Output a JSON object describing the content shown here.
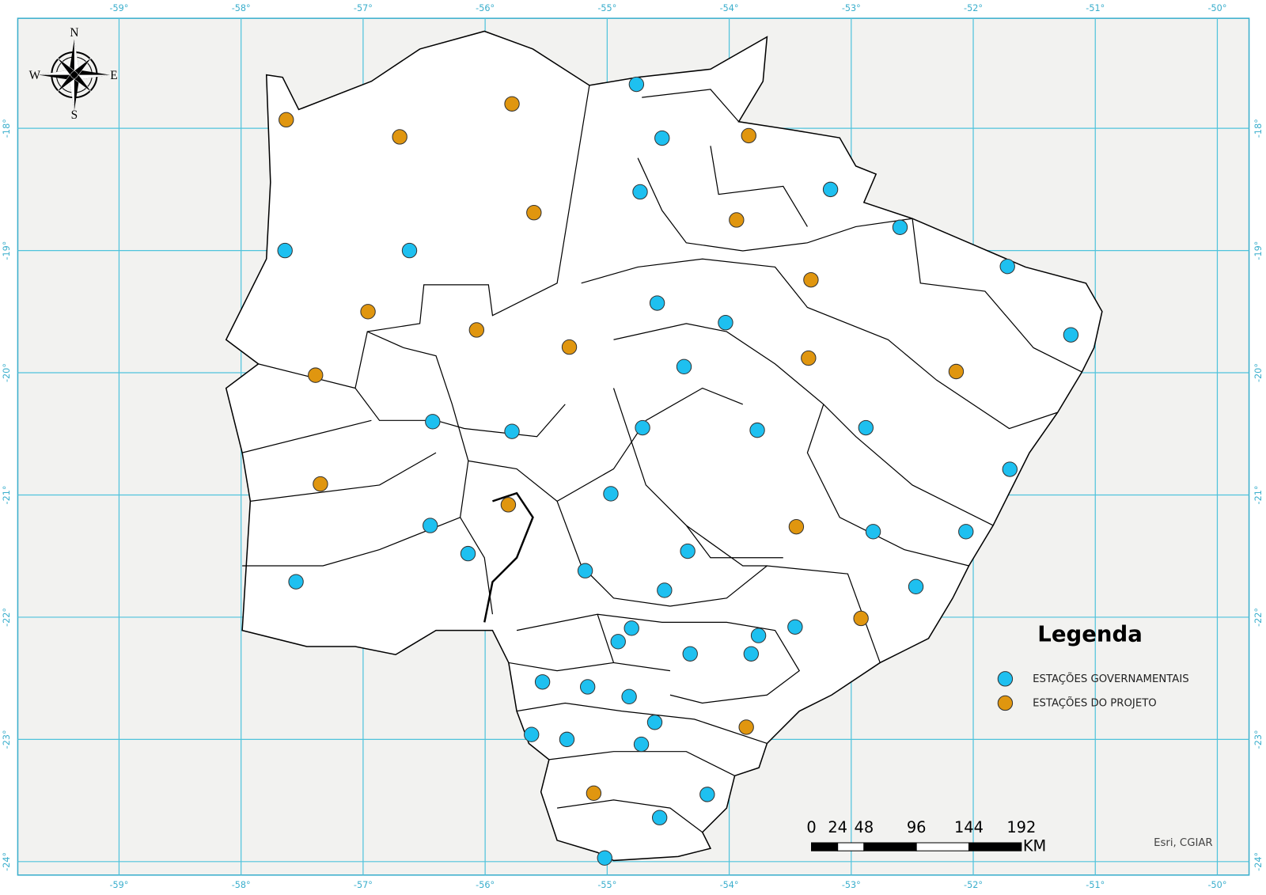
{
  "chart_data": {
    "type": "scatter",
    "legend_title": "Legenda",
    "xlim": [
      -59.83,
      -49.74
    ],
    "ylim": [
      -24.11,
      -17.1
    ],
    "xticks": [
      {
        "value": -59,
        "label": "-59°"
      },
      {
        "value": -58,
        "label": "-58°"
      },
      {
        "value": -57,
        "label": "-57°"
      },
      {
        "value": -56,
        "label": "-56°"
      },
      {
        "value": -55,
        "label": "-55°"
      },
      {
        "value": -54,
        "label": "-54°"
      },
      {
        "value": -53,
        "label": "-53°"
      },
      {
        "value": -52,
        "label": "-52°"
      },
      {
        "value": -51,
        "label": "-51°"
      },
      {
        "value": -50,
        "label": "-50°"
      }
    ],
    "yticks": [
      {
        "value": -18,
        "label": "-18°"
      },
      {
        "value": -19,
        "label": "-19°"
      },
      {
        "value": -20,
        "label": "-20°"
      },
      {
        "value": -21,
        "label": "-21°"
      },
      {
        "value": -22,
        "label": "-22°"
      },
      {
        "value": -23,
        "label": "-23°"
      },
      {
        "value": -24,
        "label": "-24°"
      }
    ],
    "grid": true,
    "series": [
      {
        "name": "ESTAÇÕES GOVERNAMENTAIS",
        "color": "#1ec0f0",
        "x": [
          -54.76,
          -54.55,
          -54.73,
          -53.17,
          -52.6,
          -51.72,
          -57.64,
          -56.62,
          -54.59,
          -54.03,
          -51.2,
          -54.37,
          -56.43,
          -55.78,
          -54.71,
          -53.77,
          -52.88,
          -51.7,
          -54.97,
          -56.45,
          -52.82,
          -52.06,
          -54.34,
          -56.14,
          -57.55,
          -55.18,
          -54.53,
          -52.47,
          -54.8,
          -54.91,
          -53.76,
          -53.46,
          -54.32,
          -53.82,
          -55.53,
          -55.16,
          -54.82,
          -54.61,
          -55.62,
          -55.33,
          -54.72,
          -54.18,
          -54.57,
          -55.02
        ],
        "y": [
          -17.64,
          -18.08,
          -18.52,
          -18.5,
          -18.81,
          -19.13,
          -19.0,
          -19.0,
          -19.43,
          -19.59,
          -19.69,
          -19.95,
          -20.4,
          -20.48,
          -20.45,
          -20.47,
          -20.45,
          -20.79,
          -20.99,
          -21.25,
          -21.3,
          -21.3,
          -21.46,
          -21.48,
          -21.71,
          -21.62,
          -21.78,
          -21.75,
          -22.09,
          -22.2,
          -22.15,
          -22.08,
          -22.3,
          -22.3,
          -22.53,
          -22.57,
          -22.65,
          -22.86,
          -22.96,
          -23.0,
          -23.04,
          -23.45,
          -23.64,
          -23.97
        ]
      },
      {
        "name": "ESTAÇÕES DO PROJETO",
        "color": "#e0960f",
        "x": [
          -57.63,
          -55.78,
          -56.7,
          -53.84,
          -55.6,
          -53.94,
          -53.33,
          -56.96,
          -56.07,
          -55.31,
          -53.35,
          -57.39,
          -52.14,
          -57.35,
          -55.81,
          -53.45,
          -52.92,
          -53.86,
          -55.11
        ],
        "y": [
          -17.93,
          -17.8,
          -18.07,
          -18.06,
          -18.69,
          -18.75,
          -19.24,
          -19.5,
          -19.65,
          -19.79,
          -19.88,
          -20.02,
          -19.99,
          -20.91,
          -21.08,
          -21.26,
          -22.01,
          -22.9,
          -23.44
        ]
      }
    ]
  },
  "compass": {
    "north": "N",
    "south": "S",
    "east": "E",
    "west": "W"
  },
  "scale_bar": {
    "labels": [
      0,
      24,
      48,
      96,
      144,
      192
    ],
    "unit": "KM"
  },
  "attribution": "Esri, CGIAR"
}
